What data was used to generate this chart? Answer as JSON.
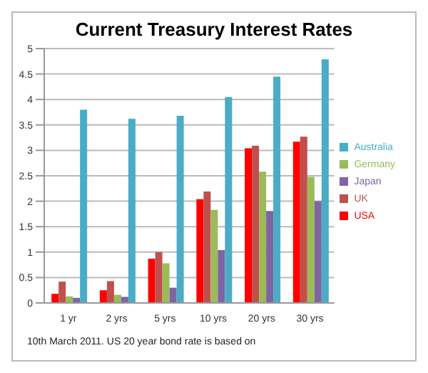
{
  "chart_data": {
    "type": "bar",
    "title": "Current Treasury Interest Rates",
    "categories": [
      "1 yr",
      "2 yrs",
      "5 yrs",
      "10 yrs",
      "20 yrs",
      "30 yrs"
    ],
    "series": [
      {
        "name": "USA",
        "color": "#ff0000",
        "values": [
          0.18,
          0.25,
          0.87,
          2.04,
          3.04,
          3.17
        ]
      },
      {
        "name": "UK",
        "color": "#c0504d",
        "values": [
          0.42,
          0.43,
          1.0,
          2.19,
          3.09,
          3.27
        ]
      },
      {
        "name": "Germany",
        "color": "#9bbb59",
        "values": [
          0.13,
          0.16,
          0.78,
          1.83,
          2.58,
          2.48
        ]
      },
      {
        "name": "Japan",
        "color": "#8064a2",
        "values": [
          0.1,
          0.12,
          0.3,
          1.04,
          1.81,
          2.0
        ]
      },
      {
        "name": "Australia",
        "color": "#4bacc6",
        "values": [
          3.8,
          3.62,
          3.68,
          4.05,
          4.45,
          4.79
        ]
      }
    ],
    "ylim": [
      0,
      5
    ],
    "yticks": [
      0,
      0.5,
      1,
      1.5,
      2,
      2.5,
      3,
      3.5,
      4,
      4.5,
      5
    ],
    "grid": "y",
    "legend": "right",
    "annotations": [
      "10th March 2011.  US 20 year bond rate is based on"
    ]
  }
}
